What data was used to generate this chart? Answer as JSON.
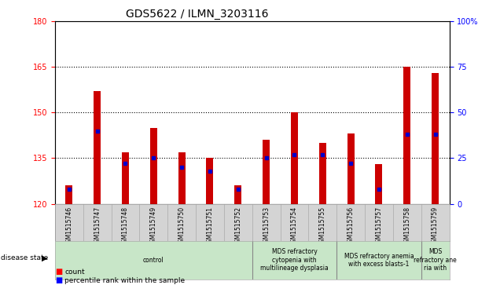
{
  "title": "GDS5622 / ILMN_3203116",
  "samples": [
    "GSM1515746",
    "GSM1515747",
    "GSM1515748",
    "GSM1515749",
    "GSM1515750",
    "GSM1515751",
    "GSM1515752",
    "GSM1515753",
    "GSM1515754",
    "GSM1515755",
    "GSM1515756",
    "GSM1515757",
    "GSM1515758",
    "GSM1515759"
  ],
  "counts": [
    126,
    157,
    137,
    145,
    137,
    135,
    126,
    141,
    150,
    140,
    143,
    133,
    165,
    163
  ],
  "percentiles_pct": [
    8,
    40,
    22,
    25,
    20,
    18,
    8,
    25,
    27,
    27,
    22,
    8,
    38,
    38
  ],
  "y_min": 120,
  "y_max": 180,
  "y_ticks_left": [
    120,
    135,
    150,
    165,
    180
  ],
  "y_ticks_right": [
    0,
    25,
    50,
    75,
    100
  ],
  "bar_color": "#cc0000",
  "dot_color": "#0000cc",
  "plot_bg": "#ffffff",
  "tick_bg": "#d4d4d4",
  "disease_bg": "#c8e6c8",
  "legend_count_label": "count",
  "legend_pct_label": "percentile rank within the sample",
  "xlabel_disease": "disease state",
  "title_fontsize": 10,
  "tick_fontsize": 7,
  "bar_width": 0.25,
  "group_bounds": [
    {
      "start": 0,
      "end": 6,
      "label": "control"
    },
    {
      "start": 7,
      "end": 9,
      "label": "MDS refractory\ncytopenia with\nmultilineage dysplasia"
    },
    {
      "start": 10,
      "end": 12,
      "label": "MDS refractory anemia\nwith excess blasts-1"
    },
    {
      "start": 13,
      "end": 13,
      "label": "MDS\nrefractory ane\nria with"
    }
  ],
  "dividers": [
    6.5,
    9.5,
    12.5
  ]
}
